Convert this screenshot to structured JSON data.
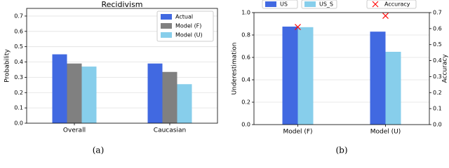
{
  "chart_data": [
    {
      "type": "bar",
      "title": "Recidivism",
      "ylabel": "Probability",
      "caption": "(a)",
      "categories": [
        "Overall",
        "Caucasian"
      ],
      "series": [
        {
          "name": "Actual",
          "color": "#4169e1",
          "values": [
            0.45,
            0.39
          ]
        },
        {
          "name": "Model (F)",
          "color": "#808080",
          "values": [
            0.39,
            0.335
          ]
        },
        {
          "name": "Model (U)",
          "color": "#87ceeb",
          "values": [
            0.37,
            0.255
          ]
        }
      ],
      "ylim": [
        0,
        0.75
      ],
      "yticks": [
        {
          "value": 0,
          "label": "0.0"
        },
        0.1,
        0.2,
        0.3,
        0.4,
        0.5,
        0.6,
        0.7
      ],
      "grid": true,
      "legend": "upper-right"
    },
    {
      "type": "bar",
      "ylabel": "Underestimation",
      "y2label": "Accuracy",
      "caption": "(b)",
      "categories": [
        "Model (F)",
        "Model (U)"
      ],
      "series": [
        {
          "name": "US",
          "color": "#4169e1",
          "values": [
            0.875,
            0.83
          ]
        },
        {
          "name": "US_S",
          "color": "#87ceeb",
          "values": [
            0.87,
            0.65
          ]
        },
        {
          "name": "Accuracy",
          "color": "#ff0000",
          "type": "scatter",
          "axis": "y2",
          "values": [
            0.61,
            0.68
          ]
        }
      ],
      "ylim": [
        0,
        1
      ],
      "yticks": [
        {
          "value": 0,
          "label": "0.0"
        },
        0.2,
        0.4,
        0.6,
        0.8,
        {
          "value": 1,
          "label": "1.0"
        }
      ],
      "y2lim": [
        0,
        0.7
      ],
      "y2ticks": [
        {
          "value": 0,
          "label": "0.0"
        },
        0.1,
        0.2,
        0.3,
        0.4,
        0.5,
        0.6,
        0.7
      ],
      "grid": true,
      "legend": "top-outside"
    }
  ]
}
